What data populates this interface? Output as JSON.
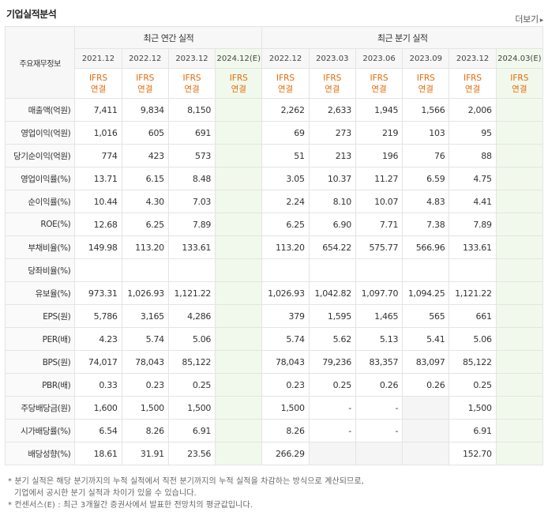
{
  "header": {
    "title": "기업실적분석",
    "more_label": "더보기",
    "more_arrow": "▸"
  },
  "table": {
    "row_header_label": "주요재무정보",
    "groups": {
      "annual": "최근 연간 실적",
      "quarterly": "최근 분기 실적"
    },
    "periods": [
      "2021.12",
      "2022.12",
      "2023.12",
      "2024.12(E)",
      "2022.12",
      "2023.03",
      "2023.06",
      "2023.09",
      "2023.12",
      "2024.03(E)"
    ],
    "basis_top": "IFRS",
    "basis_bottom": "연결",
    "rows": [
      {
        "label": "매출액(억원)",
        "values": [
          "7,411",
          "9,834",
          "8,150",
          "",
          "2,262",
          "2,633",
          "1,945",
          "1,566",
          "2,006",
          ""
        ]
      },
      {
        "label": "영업이익(억원)",
        "values": [
          "1,016",
          "605",
          "691",
          "",
          "69",
          "273",
          "219",
          "103",
          "95",
          ""
        ]
      },
      {
        "label": "당기순이익(억원)",
        "values": [
          "774",
          "423",
          "573",
          "",
          "51",
          "213",
          "196",
          "76",
          "88",
          ""
        ]
      },
      {
        "label": "영업이익률(%)",
        "values": [
          "13.71",
          "6.15",
          "8.48",
          "",
          "3.05",
          "10.37",
          "11.27",
          "6.59",
          "4.75",
          ""
        ]
      },
      {
        "label": "순이익률(%)",
        "values": [
          "10.44",
          "4.30",
          "7.03",
          "",
          "2.24",
          "8.10",
          "10.07",
          "4.83",
          "4.41",
          ""
        ]
      },
      {
        "label": "ROE(%)",
        "values": [
          "12.68",
          "6.25",
          "7.89",
          "",
          "6.25",
          "6.90",
          "7.71",
          "7.38",
          "7.89",
          ""
        ]
      },
      {
        "label": "부채비율(%)",
        "values": [
          "149.98",
          "113.20",
          "133.61",
          "",
          "113.20",
          "654.22",
          "575.77",
          "566.96",
          "133.61",
          ""
        ]
      },
      {
        "label": "당좌비율(%)",
        "values": [
          "",
          "",
          "",
          "",
          "",
          "",
          "",
          "",
          "",
          ""
        ]
      },
      {
        "label": "유보율(%)",
        "values": [
          "973.31",
          "1,026.93",
          "1,121.22",
          "",
          "1,026.93",
          "1,042.82",
          "1,097.70",
          "1,094.25",
          "1,121.22",
          ""
        ]
      },
      {
        "label": "EPS(원)",
        "values": [
          "5,786",
          "3,165",
          "4,286",
          "",
          "379",
          "1,595",
          "1,465",
          "565",
          "661",
          ""
        ]
      },
      {
        "label": "PER(배)",
        "values": [
          "4.23",
          "5.74",
          "5.06",
          "",
          "5.74",
          "5.62",
          "5.13",
          "5.41",
          "5.06",
          ""
        ]
      },
      {
        "label": "BPS(원)",
        "values": [
          "74,017",
          "78,043",
          "85,122",
          "",
          "78,043",
          "79,236",
          "83,357",
          "83,097",
          "85,122",
          ""
        ]
      },
      {
        "label": "PBR(배)",
        "values": [
          "0.33",
          "0.23",
          "0.25",
          "",
          "0.23",
          "0.25",
          "0.26",
          "0.26",
          "0.25",
          ""
        ]
      },
      {
        "label": "주당배당금(원)",
        "values": [
          "1,600",
          "1,500",
          "1,500",
          "",
          "1,500",
          "-",
          "-",
          "",
          "1,500",
          ""
        ]
      },
      {
        "label": "시가배당률(%)",
        "values": [
          "6.54",
          "8.26",
          "6.91",
          "",
          "8.26",
          "-",
          "-",
          "",
          "6.91",
          ""
        ]
      },
      {
        "label": "배당성향(%)",
        "values": [
          "18.61",
          "31.91",
          "23.56",
          "",
          "266.29",
          "",
          "",
          "",
          "152.70",
          ""
        ]
      }
    ],
    "gray_cells": [
      [
        13,
        7
      ],
      [
        14,
        7
      ],
      [
        15,
        5
      ],
      [
        15,
        6
      ],
      [
        15,
        7
      ]
    ]
  },
  "notes": {
    "line1": "* 분기 실적은 해당 분기까지의 누적 실적에서 직전 분기까지의 누적 실적을 차감하는 방식으로 계산되므로,",
    "line2": "기업에서 공시한 분기 실적과 차이가 있을 수 있습니다.",
    "line3": "* 컨센서스(E) : 최근 3개월간 증권사에서 발표한 전망치의 평균값입니다."
  }
}
